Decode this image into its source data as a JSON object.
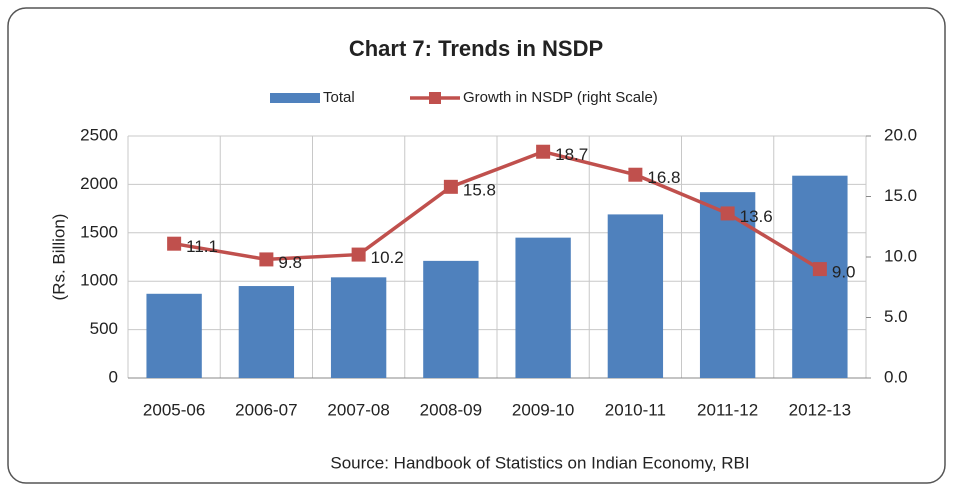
{
  "chart_data": {
    "type": "bar",
    "title": "Chart 7: Trends in NSDP",
    "categories": [
      "2005-06",
      "2006-07",
      "2007-08",
      "2008-09",
      "2009-10",
      "2010-11",
      "2011-12",
      "2012-13"
    ],
    "series": [
      {
        "name": "Total",
        "type": "bar",
        "color": "#4f81bd",
        "values": [
          870,
          950,
          1040,
          1210,
          1450,
          1690,
          1920,
          2090
        ]
      },
      {
        "name": "Growth in NSDP (right Scale)",
        "type": "line",
        "axis": "y2",
        "color": "#c0504d",
        "values": [
          11.1,
          9.8,
          10.2,
          15.8,
          18.7,
          16.8,
          13.6,
          9.0
        ],
        "value_labels": [
          "11.1",
          "9.8",
          "10.2",
          "15.8",
          "18.7",
          "16.8",
          "13.6",
          "9.0"
        ]
      }
    ],
    "y_label": "(Rs. Billion)",
    "ylim": [
      0,
      2500
    ],
    "yticks": [
      0,
      500,
      1000,
      1500,
      2000,
      2500
    ],
    "y2lim": [
      0,
      20
    ],
    "y2ticks": [
      {
        "value": 0,
        "label": "0.0"
      },
      {
        "value": 5,
        "label": "5.0"
      },
      {
        "value": 10,
        "label": "10.0"
      },
      {
        "value": 15,
        "label": "15.0"
      },
      {
        "value": 20,
        "label": "20.0"
      }
    ],
    "grid": true,
    "legend": "top",
    "source": "Source: Handbook of Statistics on Indian Economy, RBI"
  }
}
